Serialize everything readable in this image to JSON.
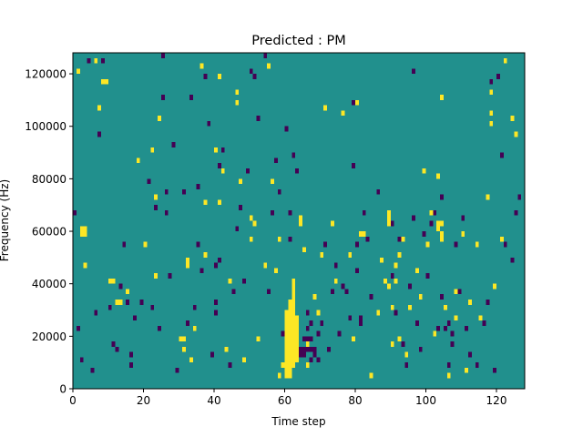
{
  "chart_data": {
    "type": "heatmap",
    "title": "Predicted : PM",
    "xlabel": "Time step",
    "ylabel": "Frequency (Hz)",
    "xlim": [
      0,
      128
    ],
    "ylim": [
      0,
      128000
    ],
    "x_ticks": [
      0,
      20,
      40,
      60,
      80,
      100,
      120
    ],
    "y_ticks": [
      0,
      20000,
      40000,
      60000,
      80000,
      100000,
      120000
    ],
    "y_tick_labels": [
      "0",
      "20000",
      "40000",
      "60000",
      "80000",
      "100000",
      "120000"
    ],
    "grid": false,
    "colormap": {
      "background": "#21908d",
      "high": "#fde725",
      "low": "#440154"
    },
    "background_value": 0,
    "cell_size": {
      "time_steps": 1,
      "frequency_hz": 2000
    },
    "high_cells": [
      [
        1,
        120
      ],
      [
        2,
        58
      ],
      [
        2,
        60
      ],
      [
        3,
        58
      ],
      [
        3,
        60
      ],
      [
        3,
        46
      ],
      [
        6,
        124
      ],
      [
        7,
        106
      ],
      [
        8,
        116
      ],
      [
        9,
        116
      ],
      [
        10,
        40
      ],
      [
        11,
        40
      ],
      [
        12,
        32
      ],
      [
        13,
        32
      ],
      [
        15,
        36
      ],
      [
        18,
        86
      ],
      [
        20,
        54
      ],
      [
        22,
        90
      ],
      [
        23,
        72
      ],
      [
        23,
        42
      ],
      [
        24,
        102
      ],
      [
        30,
        18
      ],
      [
        31,
        14
      ],
      [
        31,
        18
      ],
      [
        32,
        46
      ],
      [
        32,
        48
      ],
      [
        33,
        10
      ],
      [
        34,
        22
      ],
      [
        36,
        122
      ],
      [
        37,
        50
      ],
      [
        37,
        70
      ],
      [
        40,
        90
      ],
      [
        41,
        118
      ],
      [
        41,
        70
      ],
      [
        42,
        82
      ],
      [
        43,
        14
      ],
      [
        44,
        40
      ],
      [
        46,
        108
      ],
      [
        46,
        112
      ],
      [
        47,
        78
      ],
      [
        48,
        10
      ],
      [
        50,
        64
      ],
      [
        50,
        56
      ],
      [
        51,
        62
      ],
      [
        52,
        18
      ],
      [
        54,
        46
      ],
      [
        55,
        122
      ],
      [
        56,
        78
      ],
      [
        57,
        44
      ],
      [
        58,
        4
      ],
      [
        58,
        56
      ],
      [
        59,
        8
      ],
      [
        60,
        4
      ],
      [
        60,
        6
      ],
      [
        60,
        8
      ],
      [
        60,
        10
      ],
      [
        60,
        12
      ],
      [
        60,
        14
      ],
      [
        60,
        16
      ],
      [
        60,
        18
      ],
      [
        60,
        20
      ],
      [
        60,
        22
      ],
      [
        60,
        24
      ],
      [
        60,
        26
      ],
      [
        60,
        28
      ],
      [
        61,
        4
      ],
      [
        61,
        6
      ],
      [
        61,
        8
      ],
      [
        61,
        10
      ],
      [
        61,
        12
      ],
      [
        61,
        14
      ],
      [
        61,
        16
      ],
      [
        61,
        18
      ],
      [
        61,
        20
      ],
      [
        61,
        22
      ],
      [
        61,
        24
      ],
      [
        61,
        26
      ],
      [
        61,
        28
      ],
      [
        61,
        30
      ],
      [
        61,
        32
      ],
      [
        62,
        8
      ],
      [
        62,
        10
      ],
      [
        62,
        12
      ],
      [
        62,
        14
      ],
      [
        62,
        16
      ],
      [
        62,
        18
      ],
      [
        62,
        20
      ],
      [
        62,
        22
      ],
      [
        62,
        24
      ],
      [
        62,
        26
      ],
      [
        62,
        28
      ],
      [
        62,
        30
      ],
      [
        62,
        32
      ],
      [
        62,
        34
      ],
      [
        62,
        36
      ],
      [
        62,
        38
      ],
      [
        62,
        40
      ],
      [
        63,
        10
      ],
      [
        63,
        12
      ],
      [
        63,
        14
      ],
      [
        63,
        16
      ],
      [
        63,
        18
      ],
      [
        63,
        20
      ],
      [
        63,
        22
      ],
      [
        63,
        24
      ],
      [
        63,
        26
      ],
      [
        64,
        62
      ],
      [
        64,
        64
      ],
      [
        65,
        52
      ],
      [
        66,
        8
      ],
      [
        66,
        16
      ],
      [
        68,
        34
      ],
      [
        69,
        28
      ],
      [
        70,
        50
      ],
      [
        71,
        106
      ],
      [
        73,
        62
      ],
      [
        74,
        40
      ],
      [
        76,
        104
      ],
      [
        78,
        50
      ],
      [
        79,
        18
      ],
      [
        80,
        108
      ],
      [
        81,
        58
      ],
      [
        82,
        58
      ],
      [
        84,
        4
      ],
      [
        86,
        28
      ],
      [
        87,
        48
      ],
      [
        88,
        40
      ],
      [
        89,
        38
      ],
      [
        89,
        62
      ],
      [
        89,
        64
      ],
      [
        89,
        66
      ],
      [
        90,
        16
      ],
      [
        90,
        30
      ],
      [
        91,
        40
      ],
      [
        91,
        46
      ],
      [
        92,
        18
      ],
      [
        92,
        50
      ],
      [
        93,
        56
      ],
      [
        94,
        12
      ],
      [
        95,
        30
      ],
      [
        97,
        44
      ],
      [
        98,
        34
      ],
      [
        99,
        82
      ],
      [
        100,
        54
      ],
      [
        101,
        66
      ],
      [
        102,
        20
      ],
      [
        103,
        80
      ],
      [
        103,
        60
      ],
      [
        103,
        62
      ],
      [
        104,
        56
      ],
      [
        104,
        58
      ],
      [
        104,
        62
      ],
      [
        104,
        110
      ],
      [
        105,
        30
      ],
      [
        106,
        4
      ],
      [
        108,
        26
      ],
      [
        108,
        36
      ],
      [
        110,
        58
      ],
      [
        111,
        6
      ],
      [
        112,
        32
      ],
      [
        114,
        54
      ],
      [
        115,
        26
      ],
      [
        117,
        72
      ],
      [
        118,
        112
      ],
      [
        118,
        100
      ],
      [
        118,
        104
      ],
      [
        119,
        38
      ],
      [
        121,
        56
      ],
      [
        122,
        124
      ],
      [
        124,
        102
      ],
      [
        125,
        96
      ]
    ],
    "low_cells": [
      [
        0,
        66
      ],
      [
        1,
        22
      ],
      [
        2,
        10
      ],
      [
        4,
        124
      ],
      [
        5,
        6
      ],
      [
        6,
        28
      ],
      [
        7,
        96
      ],
      [
        8,
        124
      ],
      [
        10,
        30
      ],
      [
        11,
        16
      ],
      [
        12,
        14
      ],
      [
        13,
        38
      ],
      [
        14,
        54
      ],
      [
        15,
        32
      ],
      [
        16,
        8
      ],
      [
        16,
        12
      ],
      [
        17,
        26
      ],
      [
        19,
        32
      ],
      [
        21,
        78
      ],
      [
        22,
        30
      ],
      [
        23,
        68
      ],
      [
        24,
        22
      ],
      [
        25,
        126
      ],
      [
        25,
        110
      ],
      [
        26,
        74
      ],
      [
        26,
        66
      ],
      [
        27,
        42
      ],
      [
        28,
        92
      ],
      [
        29,
        6
      ],
      [
        31,
        74
      ],
      [
        32,
        24
      ],
      [
        33,
        110
      ],
      [
        34,
        30
      ],
      [
        35,
        76
      ],
      [
        35,
        54
      ],
      [
        36,
        44
      ],
      [
        37,
        118
      ],
      [
        38,
        100
      ],
      [
        39,
        12
      ],
      [
        40,
        28
      ],
      [
        40,
        32
      ],
      [
        40,
        46
      ],
      [
        41,
        48
      ],
      [
        41,
        84
      ],
      [
        42,
        90
      ],
      [
        44,
        8
      ],
      [
        45,
        36
      ],
      [
        46,
        60
      ],
      [
        47,
        68
      ],
      [
        48,
        40
      ],
      [
        49,
        82
      ],
      [
        50,
        120
      ],
      [
        51,
        118
      ],
      [
        52,
        102
      ],
      [
        54,
        126
      ],
      [
        55,
        36
      ],
      [
        56,
        66
      ],
      [
        57,
        86
      ],
      [
        58,
        74
      ],
      [
        59,
        20
      ],
      [
        60,
        98
      ],
      [
        61,
        56
      ],
      [
        61,
        66
      ],
      [
        62,
        88
      ],
      [
        63,
        82
      ],
      [
        64,
        12
      ],
      [
        64,
        14
      ],
      [
        65,
        12
      ],
      [
        65,
        14
      ],
      [
        65,
        18
      ],
      [
        66,
        14
      ],
      [
        66,
        18
      ],
      [
        66,
        22
      ],
      [
        66,
        28
      ],
      [
        67,
        10
      ],
      [
        67,
        14
      ],
      [
        67,
        18
      ],
      [
        67,
        24
      ],
      [
        68,
        12
      ],
      [
        68,
        14
      ],
      [
        69,
        20
      ],
      [
        69,
        10
      ],
      [
        70,
        24
      ],
      [
        71,
        54
      ],
      [
        72,
        14
      ],
      [
        73,
        36
      ],
      [
        74,
        46
      ],
      [
        75,
        20
      ],
      [
        76,
        38
      ],
      [
        77,
        36
      ],
      [
        78,
        26
      ],
      [
        79,
        108
      ],
      [
        79,
        84
      ],
      [
        80,
        44
      ],
      [
        80,
        54
      ],
      [
        81,
        26
      ],
      [
        81,
        24
      ],
      [
        82,
        66
      ],
      [
        83,
        56
      ],
      [
        84,
        34
      ],
      [
        86,
        74
      ],
      [
        88,
        40
      ],
      [
        89,
        38
      ],
      [
        90,
        62
      ],
      [
        90,
        42
      ],
      [
        91,
        28
      ],
      [
        92,
        56
      ],
      [
        93,
        16
      ],
      [
        94,
        8
      ],
      [
        95,
        38
      ],
      [
        96,
        64
      ],
      [
        96,
        120
      ],
      [
        97,
        24
      ],
      [
        98,
        14
      ],
      [
        99,
        58
      ],
      [
        100,
        42
      ],
      [
        101,
        62
      ],
      [
        102,
        66
      ],
      [
        103,
        22
      ],
      [
        104,
        34
      ],
      [
        104,
        72
      ],
      [
        105,
        22
      ],
      [
        106,
        8
      ],
      [
        106,
        24
      ],
      [
        107,
        16
      ],
      [
        107,
        20
      ],
      [
        108,
        54
      ],
      [
        109,
        36
      ],
      [
        110,
        64
      ],
      [
        111,
        22
      ],
      [
        112,
        12
      ],
      [
        114,
        8
      ],
      [
        116,
        24
      ],
      [
        117,
        32
      ],
      [
        118,
        116
      ],
      [
        119,
        6
      ],
      [
        120,
        118
      ],
      [
        121,
        88
      ],
      [
        122,
        54
      ],
      [
        124,
        48
      ],
      [
        125,
        66
      ],
      [
        126,
        72
      ]
    ]
  }
}
